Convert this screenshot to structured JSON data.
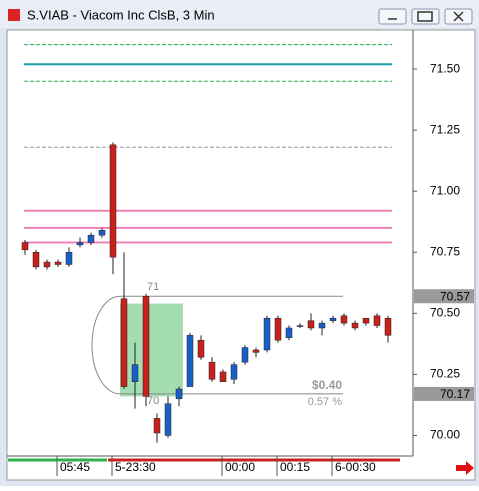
{
  "window": {
    "title": "S.VIAB - Viacom Inc ClsB, 3 Min"
  },
  "chart_data": {
    "type": "candlestick",
    "categories": [
      null,
      null,
      null,
      "05:45",
      null,
      null,
      null,
      null,
      "5-23:30",
      null,
      null,
      null,
      null,
      null,
      null,
      null,
      null,
      null,
      "00:00",
      null,
      null,
      null,
      null,
      "00:15",
      null,
      null,
      null,
      null,
      "6-00:30",
      null,
      null,
      null,
      null,
      null
    ],
    "open": [
      70.79,
      70.75,
      70.71,
      70.71,
      70.7,
      70.78,
      70.79,
      70.82,
      71.19,
      70.56,
      70.22,
      70.57,
      70.07,
      70.0,
      70.15,
      70.2,
      70.39,
      70.3,
      70.26,
      70.23,
      70.3,
      70.35,
      70.35,
      70.48,
      70.4,
      70.45,
      70.47,
      70.44,
      70.47,
      70.49,
      70.46,
      70.48,
      70.49,
      70.48
    ],
    "high": [
      70.8,
      70.76,
      70.72,
      70.72,
      70.77,
      70.81,
      70.83,
      70.85,
      71.2,
      70.75,
      70.38,
      70.58,
      70.09,
      70.16,
      70.2,
      70.42,
      70.41,
      70.32,
      70.27,
      70.3,
      70.37,
      70.36,
      70.49,
      70.49,
      70.45,
      70.46,
      70.5,
      70.47,
      70.49,
      70.5,
      70.47,
      70.48,
      70.5,
      70.49
    ],
    "low": [
      70.74,
      70.68,
      70.68,
      70.69,
      70.69,
      70.77,
      70.78,
      70.81,
      70.66,
      70.19,
      70.11,
      70.12,
      69.97,
      69.99,
      70.12,
      70.2,
      70.31,
      70.22,
      70.22,
      70.21,
      70.29,
      70.32,
      70.34,
      70.38,
      70.39,
      70.44,
      70.43,
      70.41,
      70.46,
      70.45,
      70.43,
      70.45,
      70.44,
      70.38
    ],
    "close": [
      70.76,
      70.69,
      70.69,
      70.7,
      70.75,
      70.79,
      70.82,
      70.84,
      70.73,
      70.2,
      70.29,
      70.16,
      70.01,
      70.13,
      70.19,
      70.41,
      70.32,
      70.23,
      70.22,
      70.29,
      70.36,
      70.34,
      70.48,
      70.39,
      70.44,
      70.45,
      70.44,
      70.46,
      70.48,
      70.46,
      70.44,
      70.46,
      70.45,
      70.41
    ],
    "up_color": "#1a5fc8",
    "down_color": "#c8201a",
    "ylim": [
      69.92,
      71.66
    ],
    "yticks": [
      {
        "value": 70,
        "label": "70.00"
      },
      70.25,
      {
        "value": 70.5,
        "label": "70.50"
      },
      70.75,
      {
        "value": 71,
        "label": "71.00"
      },
      71.25,
      {
        "value": 71.5,
        "label": "71.50"
      }
    ],
    "levels": [
      {
        "value": 71.6,
        "color": "#22b04a",
        "dash": true
      },
      {
        "value": 71.52,
        "color": "#17a2a8",
        "dash": false
      },
      {
        "value": 71.45,
        "color": "#22b04a",
        "dash": true
      },
      {
        "value": 71.18,
        "color": "#999999",
        "dash": true
      },
      {
        "value": 70.92,
        "color": "#f080b8",
        "dash": false
      },
      {
        "value": 70.85,
        "color": "#f080b8",
        "dash": false
      },
      {
        "value": 70.79,
        "color": "#f080b8",
        "dash": false
      }
    ],
    "price_tags": [
      70.57,
      70.17
    ],
    "measure": {
      "top_label": "71",
      "bottom_label": "70",
      "change": "$0.40",
      "percent": "0.57 %"
    },
    "zone": {
      "ylim": [
        70.16,
        70.54
      ],
      "color": "#8fd4a0"
    }
  }
}
